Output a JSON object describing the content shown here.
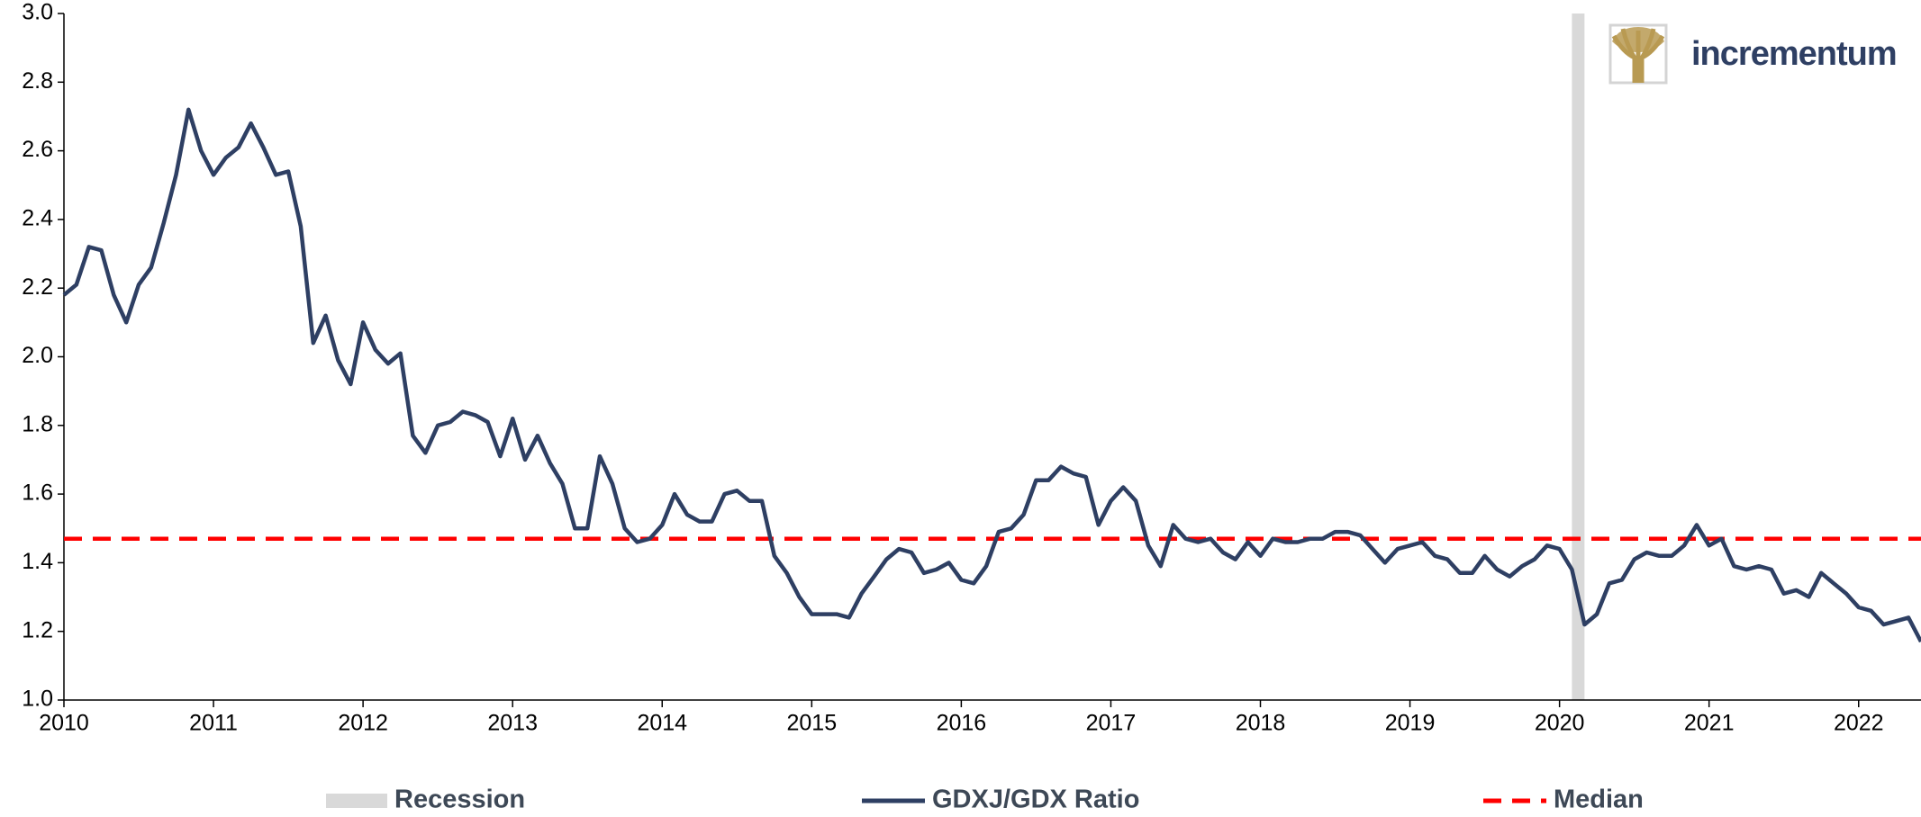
{
  "chart_data": {
    "type": "line",
    "logo": "incrementum",
    "x": [
      2010,
      2010.083,
      2010.167,
      2010.25,
      2010.333,
      2010.417,
      2010.5,
      2010.583,
      2010.667,
      2010.75,
      2010.833,
      2010.917,
      2011,
      2011.083,
      2011.167,
      2011.25,
      2011.333,
      2011.417,
      2011.5,
      2011.583,
      2011.667,
      2011.75,
      2011.833,
      2011.917,
      2012,
      2012.083,
      2012.167,
      2012.25,
      2012.333,
      2012.417,
      2012.5,
      2012.583,
      2012.667,
      2012.75,
      2012.833,
      2012.917,
      2013,
      2013.083,
      2013.167,
      2013.25,
      2013.333,
      2013.417,
      2013.5,
      2013.583,
      2013.667,
      2013.75,
      2013.833,
      2013.917,
      2014,
      2014.083,
      2014.167,
      2014.25,
      2014.333,
      2014.417,
      2014.5,
      2014.583,
      2014.667,
      2014.75,
      2014.833,
      2014.917,
      2015,
      2015.083,
      2015.167,
      2015.25,
      2015.333,
      2015.417,
      2015.5,
      2015.583,
      2015.667,
      2015.75,
      2015.833,
      2015.917,
      2016,
      2016.083,
      2016.167,
      2016.25,
      2016.333,
      2016.417,
      2016.5,
      2016.583,
      2016.667,
      2016.75,
      2016.833,
      2016.917,
      2017,
      2017.083,
      2017.167,
      2017.25,
      2017.333,
      2017.417,
      2017.5,
      2017.583,
      2017.667,
      2017.75,
      2017.833,
      2017.917,
      2018,
      2018.083,
      2018.167,
      2018.25,
      2018.333,
      2018.417,
      2018.5,
      2018.583,
      2018.667,
      2018.75,
      2018.833,
      2018.917,
      2019,
      2019.083,
      2019.167,
      2019.25,
      2019.333,
      2019.417,
      2019.5,
      2019.583,
      2019.667,
      2019.75,
      2019.833,
      2019.917,
      2020,
      2020.083,
      2020.167,
      2020.25,
      2020.333,
      2020.417,
      2020.5,
      2020.583,
      2020.667,
      2020.75,
      2020.833,
      2020.917,
      2021,
      2021.083,
      2021.167,
      2021.25,
      2021.333,
      2021.417,
      2021.5,
      2021.583,
      2021.667,
      2021.75,
      2021.833,
      2021.917,
      2022,
      2022.083,
      2022.167,
      2022.25,
      2022.333,
      2022.417
    ],
    "series": [
      {
        "name": "GDXJ/GDX Ratio",
        "color": "#2e3f63",
        "values": [
          2.18,
          2.21,
          2.32,
          2.31,
          2.18,
          2.1,
          2.21,
          2.26,
          2.39,
          2.53,
          2.72,
          2.6,
          2.53,
          2.58,
          2.61,
          2.68,
          2.61,
          2.53,
          2.54,
          2.38,
          2.04,
          2.12,
          1.99,
          1.92,
          2.1,
          2.02,
          1.98,
          2.01,
          1.77,
          1.72,
          1.8,
          1.81,
          1.84,
          1.83,
          1.81,
          1.71,
          1.82,
          1.7,
          1.77,
          1.69,
          1.63,
          1.5,
          1.5,
          1.71,
          1.63,
          1.5,
          1.46,
          1.47,
          1.51,
          1.6,
          1.54,
          1.52,
          1.52,
          1.6,
          1.61,
          1.58,
          1.58,
          1.42,
          1.37,
          1.3,
          1.25,
          1.25,
          1.25,
          1.24,
          1.31,
          1.36,
          1.41,
          1.44,
          1.43,
          1.37,
          1.38,
          1.4,
          1.35,
          1.34,
          1.39,
          1.49,
          1.5,
          1.54,
          1.64,
          1.64,
          1.68,
          1.66,
          1.65,
          1.51,
          1.58,
          1.62,
          1.58,
          1.45,
          1.39,
          1.51,
          1.47,
          1.46,
          1.47,
          1.43,
          1.41,
          1.46,
          1.42,
          1.47,
          1.46,
          1.46,
          1.47,
          1.47,
          1.49,
          1.49,
          1.48,
          1.44,
          1.4,
          1.44,
          1.45,
          1.46,
          1.42,
          1.41,
          1.37,
          1.37,
          1.42,
          1.38,
          1.36,
          1.39,
          1.41,
          1.45,
          1.44,
          1.38,
          1.22,
          1.25,
          1.34,
          1.35,
          1.41,
          1.43,
          1.42,
          1.42,
          1.45,
          1.51,
          1.45,
          1.47,
          1.39,
          1.38,
          1.39,
          1.38,
          1.31,
          1.32,
          1.3,
          1.37,
          1.34,
          1.31,
          1.27,
          1.26,
          1.22,
          1.23,
          1.24,
          1.17
        ]
      }
    ],
    "median": {
      "name": "Median",
      "value": 1.47,
      "color": "#ff0000"
    },
    "recession": {
      "name": "Recession",
      "start": 2020.083,
      "end": 2020.167,
      "color": "#d9d9d9"
    },
    "xlim": [
      2010,
      2022.417
    ],
    "xticks": [
      2010,
      2011,
      2012,
      2013,
      2014,
      2015,
      2016,
      2017,
      2018,
      2019,
      2020,
      2021,
      2022
    ],
    "ylim": [
      1.0,
      3.0
    ],
    "yticks": [
      {
        "value": 1.0,
        "label": "1.0"
      },
      1.2,
      1.4,
      1.6,
      1.8,
      {
        "value": 2.0,
        "label": "2.0"
      },
      2.2,
      2.4,
      2.6,
      2.8,
      {
        "value": 3.0,
        "label": "3.0"
      }
    ],
    "grid": false
  }
}
